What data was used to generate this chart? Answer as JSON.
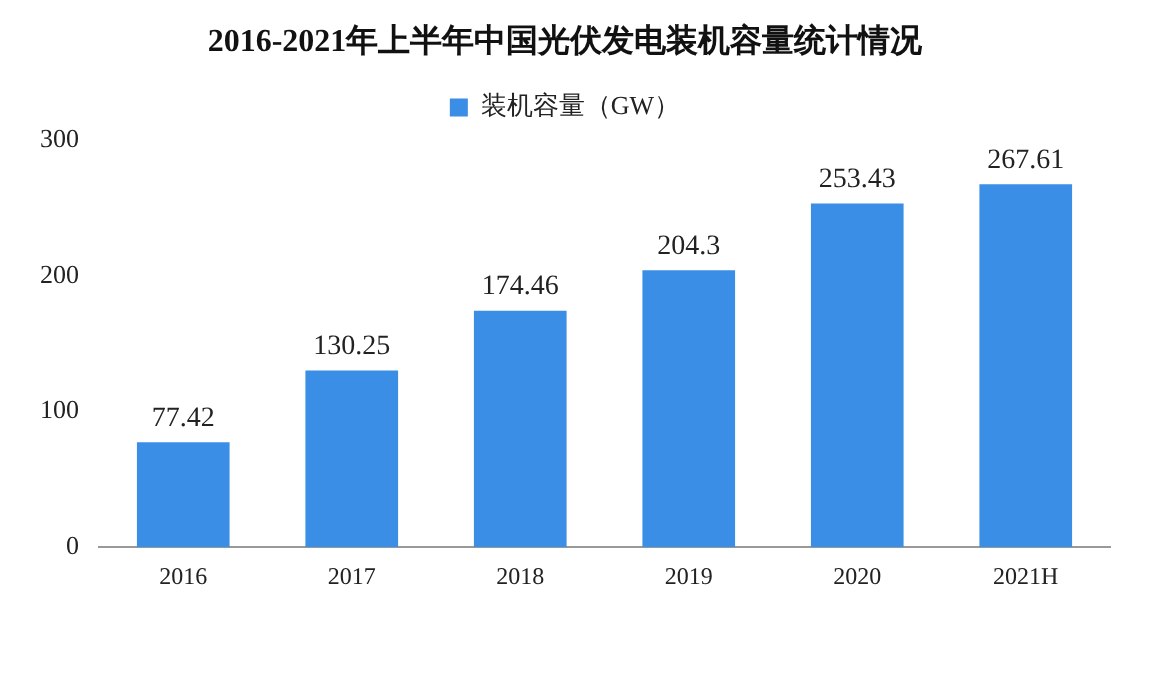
{
  "chart_data": {
    "type": "bar",
    "title": "2016-2021年上半年中国光伏发电装机容量统计情况",
    "categories": [
      "2016",
      "2017",
      "2018",
      "2019",
      "2020",
      "2021H"
    ],
    "series": [
      {
        "name": "装机容量（GW）",
        "color": "#3a8ee6",
        "values": [
          77.42,
          130.25,
          174.46,
          204.3,
          253.43,
          267.61
        ]
      }
    ],
    "ylim": [
      0,
      300
    ],
    "yticks": [
      0,
      100,
      200,
      300
    ],
    "grid": false,
    "legend": "top",
    "data_labels": true
  }
}
